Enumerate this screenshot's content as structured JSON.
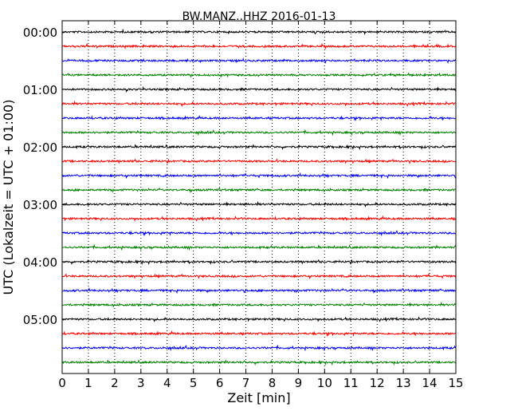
{
  "chart_data": {
    "type": "line",
    "title": "BW.MANZ..HHZ 2016-01-13",
    "xlabel": "Zeit  [min]",
    "ylabel": "UTC (Lokalzeit = UTC + 01:00)",
    "xlim": [
      0,
      15
    ],
    "x_ticks": [
      "0",
      "1",
      "2",
      "3",
      "4",
      "5",
      "6",
      "7",
      "8",
      "9",
      "10",
      "11",
      "12",
      "13",
      "14",
      "15"
    ],
    "y_ticks": [
      {
        "label": "00:00",
        "row": 0
      },
      {
        "label": "01:00",
        "row": 4
      },
      {
        "label": "02:00",
        "row": 8
      },
      {
        "label": "03:00",
        "row": 12
      },
      {
        "label": "04:00",
        "row": 16
      },
      {
        "label": "05:00",
        "row": 20
      }
    ],
    "trace_count": 24,
    "trace_minutes_each": 15,
    "trace_colors": [
      "#000000",
      "#ff0000",
      "#0000ff",
      "#008000"
    ],
    "grid": {
      "x": "dotted",
      "y": false
    },
    "legend": false
  }
}
